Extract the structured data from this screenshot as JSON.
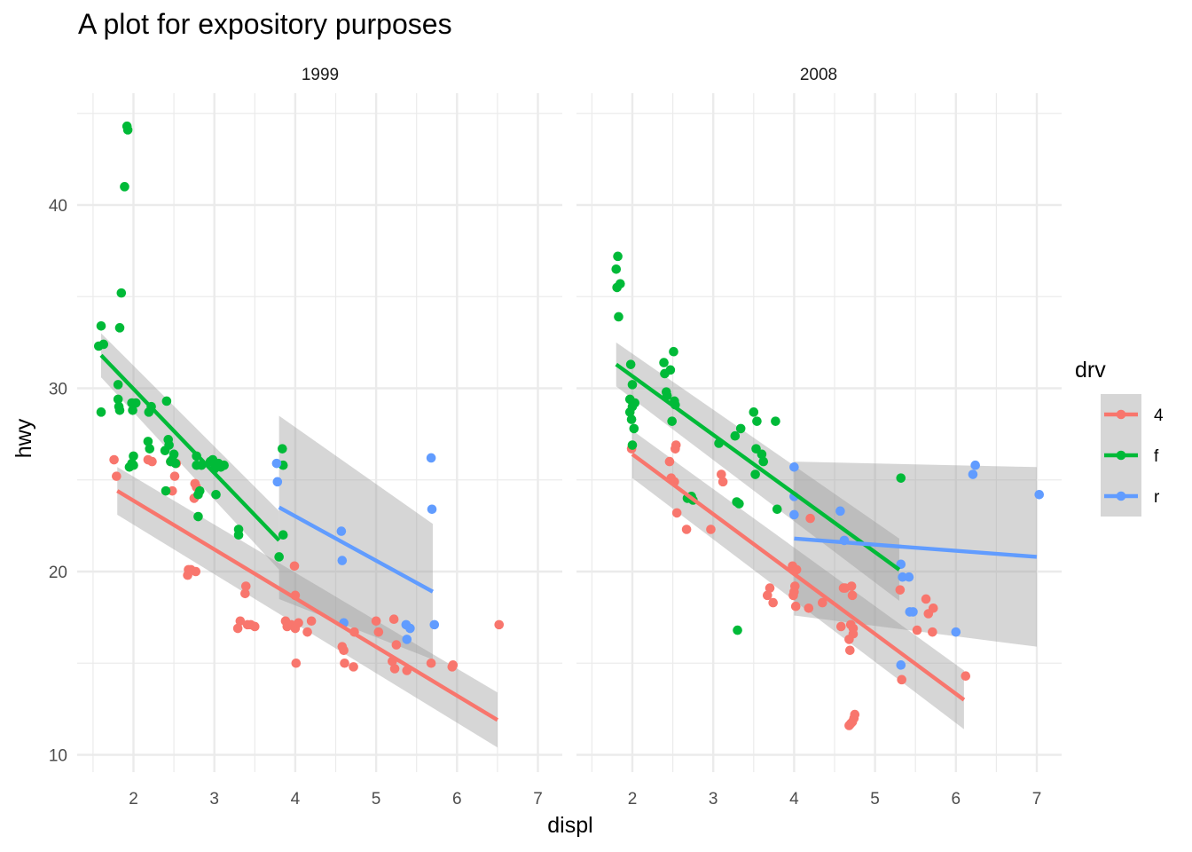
{
  "chart_data": {
    "type": "scatter",
    "title": "A plot for expository purposes",
    "xlabel": "displ",
    "ylabel": "hwy",
    "facets": [
      "1999",
      "2008"
    ],
    "xlim": [
      1.5,
      7.2
    ],
    "ylim": [
      9,
      46
    ],
    "x_ticks": [
      2,
      3,
      4,
      5,
      6,
      7
    ],
    "y_ticks": [
      10,
      20,
      30,
      40
    ],
    "grid": true,
    "legend": {
      "title": "drv",
      "position": "right",
      "entries": [
        "4",
        "f",
        "r"
      ]
    },
    "colors": {
      "4": "#F8766D",
      "f": "#00BA38",
      "r": "#619CFF"
    },
    "panels": [
      {
        "facet": "1999",
        "fits": [
          {
            "drv": "4",
            "x": [
              1.8,
              6.5
            ],
            "y": [
              24.4,
              11.9
            ],
            "band_upper": [
              25.7,
              13.4
            ],
            "band_lower": [
              23.1,
              10.4
            ]
          },
          {
            "drv": "f",
            "x": [
              1.6,
              3.8
            ],
            "y": [
              31.8,
              21.7
            ],
            "band_upper": [
              33.0,
              23.3
            ],
            "band_lower": [
              30.6,
              20.1
            ]
          },
          {
            "drv": "r",
            "x": [
              3.8,
              5.7
            ],
            "y": [
              23.5,
              18.9
            ],
            "band_upper": [
              28.5,
              22.6
            ],
            "band_lower": [
              18.5,
              15.2
            ]
          }
        ],
        "points": {
          "4": [
            [
              1.76,
              26.1
            ],
            [
              1.79,
              25.2
            ],
            [
              2.18,
              26.1
            ],
            [
              2.23,
              26.0
            ],
            [
              2.46,
              26.0
            ],
            [
              2.48,
              24.4
            ],
            [
              2.51,
              25.2
            ],
            [
              2.53,
              25.9
            ],
            [
              2.75,
              24.0
            ],
            [
              2.76,
              24.8
            ],
            [
              2.78,
              24.6
            ],
            [
              2.67,
              19.8
            ],
            [
              2.68,
              20.1
            ],
            [
              2.71,
              20.1
            ],
            [
              2.77,
              20.0
            ],
            [
              3.29,
              16.9
            ],
            [
              3.32,
              17.3
            ],
            [
              3.38,
              18.8
            ],
            [
              3.39,
              19.2
            ],
            [
              3.41,
              17.1
            ],
            [
              3.45,
              17.1
            ],
            [
              3.5,
              17.0
            ],
            [
              3.88,
              17.3
            ],
            [
              3.9,
              17.0
            ],
            [
              3.95,
              17.1
            ],
            [
              3.99,
              20.3
            ],
            [
              4.0,
              18.7
            ],
            [
              4.0,
              16.9
            ],
            [
              4.01,
              15.0
            ],
            [
              4.04,
              17.2
            ],
            [
              4.15,
              16.7
            ],
            [
              4.2,
              17.3
            ],
            [
              4.58,
              15.9
            ],
            [
              4.6,
              15.7
            ],
            [
              4.61,
              15.0
            ],
            [
              4.72,
              14.8
            ],
            [
              4.73,
              16.7
            ],
            [
              5.0,
              17.3
            ],
            [
              5.03,
              16.7
            ],
            [
              5.2,
              15.1
            ],
            [
              5.22,
              17.4
            ],
            [
              5.23,
              14.7
            ],
            [
              5.25,
              16.0
            ],
            [
              5.38,
              14.6
            ],
            [
              5.68,
              15.0
            ],
            [
              5.94,
              14.8
            ],
            [
              5.95,
              14.9
            ],
            [
              6.52,
              17.1
            ]
          ],
          "f": [
            [
              1.57,
              32.3
            ],
            [
              1.6,
              33.4
            ],
            [
              1.6,
              28.7
            ],
            [
              1.63,
              32.4
            ],
            [
              1.81,
              30.2
            ],
            [
              1.81,
              29.4
            ],
            [
              1.82,
              29.0
            ],
            [
              1.83,
              28.8
            ],
            [
              1.83,
              33.3
            ],
            [
              1.85,
              35.2
            ],
            [
              1.89,
              41.0
            ],
            [
              1.92,
              44.3
            ],
            [
              1.93,
              44.1
            ],
            [
              1.95,
              25.7
            ],
            [
              1.98,
              29.2
            ],
            [
              1.98,
              25.9
            ],
            [
              1.99,
              28.8
            ],
            [
              2.0,
              26.3
            ],
            [
              2.0,
              25.8
            ],
            [
              2.03,
              29.2
            ],
            [
              2.18,
              27.1
            ],
            [
              2.19,
              28.7
            ],
            [
              2.2,
              26.7
            ],
            [
              2.22,
              29.0
            ],
            [
              2.39,
              26.6
            ],
            [
              2.4,
              24.4
            ],
            [
              2.41,
              29.3
            ],
            [
              2.43,
              27.2
            ],
            [
              2.44,
              26.9
            ],
            [
              2.46,
              26.0
            ],
            [
              2.48,
              26.1
            ],
            [
              2.5,
              26.4
            ],
            [
              2.52,
              25.9
            ],
            [
              2.78,
              26.3
            ],
            [
              2.78,
              25.8
            ],
            [
              2.8,
              24.2
            ],
            [
              2.8,
              23.0
            ],
            [
              2.82,
              24.4
            ],
            [
              2.84,
              25.8
            ],
            [
              2.95,
              26.0
            ],
            [
              2.98,
              26.1
            ],
            [
              3.0,
              25.6
            ],
            [
              3.02,
              24.2
            ],
            [
              3.05,
              25.9
            ],
            [
              3.08,
              25.7
            ],
            [
              3.12,
              25.8
            ],
            [
              3.3,
              22.3
            ],
            [
              3.3,
              22.0
            ],
            [
              3.8,
              20.8
            ],
            [
              3.84,
              26.7
            ],
            [
              3.85,
              25.8
            ],
            [
              3.85,
              22.0
            ]
          ],
          "r": [
            [
              3.77,
              25.9
            ],
            [
              3.78,
              24.9
            ],
            [
              4.57,
              22.2
            ],
            [
              4.58,
              20.6
            ],
            [
              4.6,
              17.2
            ],
            [
              5.37,
              17.1
            ],
            [
              5.38,
              16.3
            ],
            [
              5.42,
              16.9
            ],
            [
              5.68,
              26.2
            ],
            [
              5.69,
              23.4
            ],
            [
              5.72,
              17.1
            ]
          ]
        }
      },
      {
        "facet": "2008",
        "fits": [
          {
            "drv": "4",
            "x": [
              2.0,
              6.1
            ],
            "y": [
              26.4,
              13.0
            ],
            "band_upper": [
              27.7,
              14.6
            ],
            "band_lower": [
              25.1,
              11.4
            ]
          },
          {
            "drv": "f",
            "x": [
              1.8,
              5.3
            ],
            "y": [
              31.3,
              20.1
            ],
            "band_upper": [
              32.5,
              21.8
            ],
            "band_lower": [
              30.1,
              18.4
            ]
          },
          {
            "drv": "r",
            "x": [
              4.0,
              7.0
            ],
            "y": [
              21.8,
              20.8
            ],
            "band_upper": [
              26.0,
              25.7
            ],
            "band_lower": [
              17.6,
              15.9
            ]
          }
        ],
        "points": {
          "4": [
            [
              1.99,
              26.7
            ],
            [
              2.46,
              26.0
            ],
            [
              2.48,
              25.1
            ],
            [
              2.52,
              24.9
            ],
            [
              2.53,
              26.7
            ],
            [
              2.54,
              26.9
            ],
            [
              2.55,
              23.2
            ],
            [
              2.67,
              22.3
            ],
            [
              2.97,
              22.3
            ],
            [
              3.1,
              25.3
            ],
            [
              3.12,
              24.9
            ],
            [
              3.67,
              18.7
            ],
            [
              3.7,
              19.1
            ],
            [
              3.74,
              18.3
            ],
            [
              3.98,
              20.3
            ],
            [
              3.99,
              18.7
            ],
            [
              4.0,
              18.9
            ],
            [
              4.01,
              19.2
            ],
            [
              4.02,
              18.1
            ],
            [
              4.03,
              20.1
            ],
            [
              4.18,
              18.0
            ],
            [
              4.2,
              22.9
            ],
            [
              4.35,
              18.3
            ],
            [
              4.58,
              17.0
            ],
            [
              4.61,
              19.1
            ],
            [
              4.63,
              19.1
            ],
            [
              4.68,
              16.3
            ],
            [
              4.69,
              15.7
            ],
            [
              4.7,
              17.1
            ],
            [
              4.71,
              19.2
            ],
            [
              4.72,
              18.7
            ],
            [
              4.73,
              16.9
            ],
            [
              4.73,
              16.6
            ],
            [
              4.72,
              11.8
            ],
            [
              4.74,
              12.0
            ],
            [
              4.75,
              12.2
            ],
            [
              4.68,
              11.6
            ],
            [
              4.7,
              11.7
            ],
            [
              5.31,
              19.0
            ],
            [
              5.33,
              14.1
            ],
            [
              5.52,
              16.8
            ],
            [
              5.63,
              18.5
            ],
            [
              5.66,
              17.7
            ],
            [
              5.72,
              18.0
            ],
            [
              5.71,
              16.7
            ],
            [
              6.12,
              14.3
            ]
          ],
          "f": [
            [
              1.8,
              36.5
            ],
            [
              1.81,
              35.5
            ],
            [
              1.82,
              37.2
            ],
            [
              1.83,
              33.9
            ],
            [
              1.85,
              35.7
            ],
            [
              1.97,
              28.7
            ],
            [
              1.97,
              29.4
            ],
            [
              1.98,
              31.3
            ],
            [
              1.99,
              28.3
            ],
            [
              2.0,
              29.0
            ],
            [
              2.0,
              26.9
            ],
            [
              2.0,
              30.2
            ],
            [
              2.02,
              27.8
            ],
            [
              2.03,
              29.2
            ],
            [
              2.39,
              31.4
            ],
            [
              2.4,
              30.8
            ],
            [
              2.42,
              29.8
            ],
            [
              2.43,
              29.6
            ],
            [
              2.47,
              31.0
            ],
            [
              2.49,
              28.2
            ],
            [
              2.51,
              32.0
            ],
            [
              2.52,
              29.3
            ],
            [
              2.53,
              29.1
            ],
            [
              2.68,
              24.0
            ],
            [
              2.73,
              24.1
            ],
            [
              2.75,
              23.9
            ],
            [
              3.07,
              27.0
            ],
            [
              3.27,
              27.4
            ],
            [
              3.29,
              23.8
            ],
            [
              3.32,
              23.7
            ],
            [
              3.34,
              27.8
            ],
            [
              3.5,
              28.7
            ],
            [
              3.52,
              25.3
            ],
            [
              3.53,
              26.7
            ],
            [
              3.54,
              28.2
            ],
            [
              3.6,
              26.4
            ],
            [
              3.62,
              26.0
            ],
            [
              3.77,
              28.2
            ],
            [
              3.79,
              23.4
            ],
            [
              3.3,
              16.8
            ],
            [
              5.32,
              25.1
            ]
          ],
          "r": [
            [
              4.0,
              25.7
            ],
            [
              4.0,
              24.1
            ],
            [
              4.0,
              23.1
            ],
            [
              4.57,
              23.3
            ],
            [
              4.62,
              21.7
            ],
            [
              5.32,
              20.4
            ],
            [
              5.34,
              19.7
            ],
            [
              5.32,
              14.9
            ],
            [
              5.42,
              19.7
            ],
            [
              5.43,
              17.8
            ],
            [
              5.47,
              17.8
            ],
            [
              6.0,
              16.7
            ],
            [
              6.21,
              25.3
            ],
            [
              6.24,
              25.8
            ],
            [
              7.03,
              24.2
            ]
          ]
        }
      }
    ]
  }
}
